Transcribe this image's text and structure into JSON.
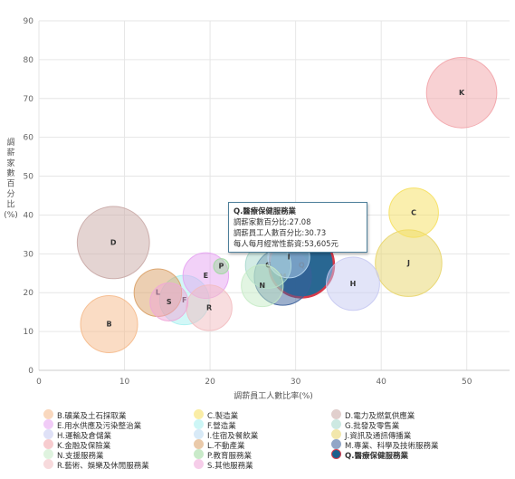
{
  "chart_data": {
    "type": "bubble",
    "xlabel": "調薪員工人數比率(%)",
    "ylabel": "調薪家數百分比(%)",
    "xlim": [
      0,
      55
    ],
    "ylim": [
      0,
      90
    ],
    "xticks": [
      0,
      10,
      20,
      30,
      40,
      50
    ],
    "yticks": [
      0,
      10,
      20,
      30,
      40,
      50,
      60,
      70,
      80,
      90
    ],
    "grid": true,
    "legend_position": "bottom",
    "series": [
      {
        "code": "B",
        "name": "B.礦業及土石採取業",
        "x": 8.2,
        "y": 11.9,
        "bubble_size": 30,
        "color": "#f5b98a"
      },
      {
        "code": "C",
        "name": "C.製造業",
        "x": 43.8,
        "y": 40.6,
        "bubble_size": 26,
        "color": "#f6e05e"
      },
      {
        "code": "D",
        "name": "D.電力及燃氣供應業",
        "x": 8.7,
        "y": 32.9,
        "bubble_size": 38,
        "color": "#c9a9a6"
      },
      {
        "code": "E",
        "name": "E.用水供應及污染整治業",
        "x": 19.5,
        "y": 24.4,
        "bubble_size": 24,
        "color": "#e6a3f2"
      },
      {
        "code": "F",
        "name": "F.營造業",
        "x": 17.0,
        "y": 18.1,
        "bubble_size": 26,
        "color": "#a6f0f0"
      },
      {
        "code": "G",
        "name": "G.批發及零售業",
        "x": 26.8,
        "y": 27.0,
        "bubble_size": 24,
        "color": "#a6d8cc"
      },
      {
        "code": "H",
        "name": "H.運輸及倉儲業",
        "x": 36.7,
        "y": 22.3,
        "bubble_size": 28,
        "color": "#c6c9f2"
      },
      {
        "code": "I",
        "name": "I.住宿及餐飲業",
        "x": 29.2,
        "y": 29.2,
        "bubble_size": 22,
        "color": "#b9d9f2"
      },
      {
        "code": "J",
        "name": "J.資訊及通訊傳播業",
        "x": 43.2,
        "y": 27.6,
        "bubble_size": 35,
        "color": "#e8d56a"
      },
      {
        "code": "K",
        "name": "K.金融及保險業",
        "x": 49.4,
        "y": 71.5,
        "bubble_size": 37,
        "color": "#f2a3a8"
      },
      {
        "code": "L",
        "name": "L.不動產業",
        "x": 13.9,
        "y": 20.0,
        "bubble_size": 25,
        "color": "#d9a066"
      },
      {
        "code": "M",
        "name": "M.專業、科學及技術服務業",
        "x": 28.5,
        "y": 24.1,
        "bubble_size": 30,
        "color": "#3a5f9a"
      },
      {
        "code": "N",
        "name": "N.支援服務業",
        "x": 26.1,
        "y": 21.8,
        "bubble_size": 22,
        "color": "#c6ebc6"
      },
      {
        "code": "P",
        "name": "P.教育服務業",
        "x": 21.3,
        "y": 26.8,
        "bubble_size": 8,
        "color": "#9ed99e"
      },
      {
        "code": "Q",
        "name": "Q.醫療保健服務業",
        "x": 30.7,
        "y": 27.1,
        "bubble_size": 34,
        "color": "#1d5f8c",
        "highlight_color": "#d63a4a"
      },
      {
        "code": "R",
        "name": "R.藝術、娛樂及休閒服務業",
        "x": 19.9,
        "y": 16.1,
        "bubble_size": 24,
        "color": "#f2bcc0"
      },
      {
        "code": "S",
        "name": "S.其他服務業",
        "x": 15.2,
        "y": 17.6,
        "bubble_size": 20,
        "color": "#f0a6d8"
      }
    ]
  },
  "tooltip": {
    "title": "Q.醫療保健服務業",
    "line1": "調薪家數百分比:27.08",
    "line2": "調薪員工人數百分比:30.73",
    "line3": "每人每月經常性薪資:53,605元"
  }
}
